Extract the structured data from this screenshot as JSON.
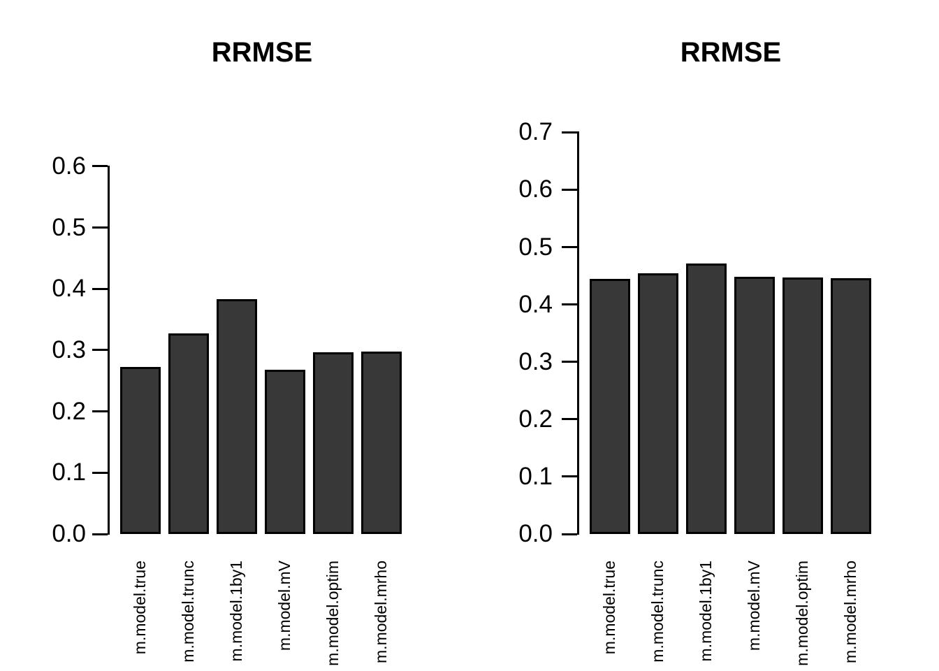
{
  "figure": {
    "background": "#ffffff",
    "axis_color": "#000000",
    "bar_fill": "#383838",
    "bar_border": "#000000"
  },
  "chart_data": [
    {
      "type": "bar",
      "title": "RRMSE",
      "categories": [
        "m.model.true",
        "m.model.trunc",
        "m.model.1by1",
        "m.model.mV",
        "m.model.optim",
        "m.model.mrho"
      ],
      "values": [
        0.272,
        0.327,
        0.383,
        0.268,
        0.297,
        0.298
      ],
      "xlabel": "",
      "ylabel": "",
      "ylim": [
        0,
        0.6
      ],
      "yticks": [
        "0.0",
        "0.1",
        "0.2",
        "0.3",
        "0.4",
        "0.5",
        "0.6"
      ],
      "grid": false,
      "legend_position": "none",
      "bar_color": "#383838"
    },
    {
      "type": "bar",
      "title": "RRMSE",
      "categories": [
        "m.model.true",
        "m.model.trunc",
        "m.model.1by1",
        "m.model.mV",
        "m.model.optim",
        "m.model.mrho"
      ],
      "values": [
        0.444,
        0.454,
        0.471,
        0.448,
        0.447,
        0.446
      ],
      "xlabel": "",
      "ylabel": "",
      "ylim": [
        0,
        0.7
      ],
      "yticks": [
        "0.0",
        "0.1",
        "0.2",
        "0.3",
        "0.4",
        "0.5",
        "0.6",
        "0.7"
      ],
      "grid": false,
      "legend_position": "none",
      "bar_color": "#383838"
    }
  ]
}
